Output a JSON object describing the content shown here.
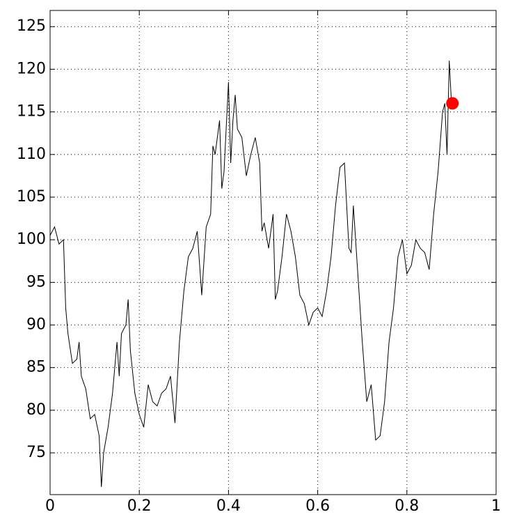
{
  "chart_data": {
    "type": "line",
    "x": [
      0,
      0.01,
      0.02,
      0.03,
      0.035,
      0.04,
      0.05,
      0.06,
      0.065,
      0.07,
      0.08,
      0.09,
      0.1,
      0.11,
      0.115,
      0.12,
      0.13,
      0.14,
      0.15,
      0.155,
      0.16,
      0.17,
      0.175,
      0.18,
      0.19,
      0.2,
      0.21,
      0.22,
      0.23,
      0.24,
      0.25,
      0.26,
      0.27,
      0.28,
      0.29,
      0.3,
      0.31,
      0.32,
      0.33,
      0.34,
      0.35,
      0.36,
      0.365,
      0.37,
      0.38,
      0.385,
      0.39,
      0.4,
      0.405,
      0.41,
      0.415,
      0.42,
      0.43,
      0.44,
      0.45,
      0.46,
      0.47,
      0.475,
      0.48,
      0.49,
      0.5,
      0.505,
      0.51,
      0.52,
      0.53,
      0.54,
      0.55,
      0.56,
      0.57,
      0.58,
      0.59,
      0.6,
      0.61,
      0.62,
      0.63,
      0.64,
      0.65,
      0.66,
      0.67,
      0.675,
      0.68,
      0.69,
      0.7,
      0.71,
      0.72,
      0.73,
      0.74,
      0.75,
      0.76,
      0.77,
      0.78,
      0.79,
      0.8,
      0.81,
      0.82,
      0.83,
      0.84,
      0.85,
      0.86,
      0.87,
      0.88,
      0.885,
      0.89,
      0.895,
      0.9
    ],
    "series": [
      {
        "color": "#000000",
        "values": [
          100.5,
          101.5,
          99.5,
          100,
          92,
          89,
          85.5,
          86,
          88,
          84,
          82.5,
          79,
          79.5,
          77,
          71,
          75,
          78,
          82,
          88,
          84,
          89,
          90,
          93,
          87,
          82,
          79.5,
          78,
          83,
          81,
          80.5,
          82,
          82.5,
          84,
          78.5,
          88,
          94,
          98,
          99,
          101,
          93.5,
          101.5,
          103,
          111,
          110,
          114,
          106,
          108,
          118.5,
          109,
          114,
          117,
          113,
          112,
          107.5,
          110,
          112,
          109,
          101,
          102,
          99,
          103,
          93,
          94,
          98,
          103,
          101,
          98,
          93.5,
          92.5,
          90,
          91.5,
          92,
          91,
          94,
          98,
          104,
          108.5,
          109,
          99,
          98.5,
          104,
          96,
          88,
          81,
          83,
          76.5,
          77,
          81,
          88,
          92,
          98,
          100,
          96,
          97,
          100,
          99,
          98.5,
          96.5,
          103,
          108,
          115,
          116,
          110,
          121,
          116
        ]
      }
    ],
    "marker": {
      "x": 0.902,
      "y": 116,
      "color": "#ff0000"
    },
    "xlim": [
      0,
      1
    ],
    "ylim": [
      70.1,
      126.9
    ],
    "xticks": [
      0,
      0.2,
      0.4,
      0.6,
      0.8,
      1
    ],
    "yticks": [
      75,
      80,
      85,
      90,
      95,
      100,
      105,
      110,
      115,
      120,
      125
    ],
    "grid": true
  }
}
